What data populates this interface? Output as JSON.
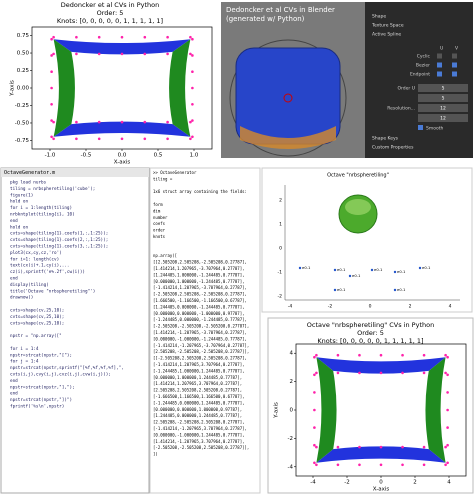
{
  "python_plot": {
    "title": "Dedoncker et al CVs in Python",
    "order": "Order: 5",
    "knots": "Knots: [0, 0, 0, 0, 0, 1, 1, 1, 1, 1]",
    "xlabel": "X-axis",
    "ylabel": "Y-axis",
    "xticks": [
      "-1.0",
      "-0.5",
      "0.0",
      "0.5",
      "1.0"
    ],
    "yticks": [
      "0.75",
      "0.50",
      "0.25",
      "0.00",
      "-0.25",
      "-0.50",
      "-0.75"
    ]
  },
  "blender": {
    "title_line1": "Dedoncker et al CVs in Blender",
    "title_line2": "(generated w/ Python)",
    "sections": [
      "Shape",
      "Texture Space",
      "Active Spline"
    ],
    "cyclic": "Cyclic",
    "bezier": "Bezier",
    "endpoint": "Endpoint",
    "u": "U",
    "v": "V",
    "order": "Order U",
    "order_u": "5",
    "order_v": "5",
    "resolution": "Resolution...",
    "res_u": "12",
    "res_v": "12",
    "smooth": "Smooth",
    "footer": [
      "Shape Keys",
      "Custom Properties"
    ]
  },
  "editor": {
    "tab": "OctaveGenerator.m",
    "lines": [
      "pkg load nurbs",
      "tiling = nrbspheretiling('cube');",
      "figure(1)",
      "hold on",
      "for i = 1:length(tiling)",
      "  nrbkntplot(tiling{i}, 10)",
      "end",
      "hold on",
      "cvts=shape(tiling{1}.coefs(1,:,1:25));",
      "cvts=shape(tiling{1}.coefs(2,:,1:25));",
      "cvts=shape(tiling{1}.coefs(3,:,1:25));",
      "plot3(cx,cy,cz,'ro')",
      "for i=1: length(cv)",
      "  text(cx(i)+.1,cy(i),...",
      "    cz(i),sprintf('e%.2f',cw(i)))",
      "end",
      "display(tiling)",
      "title('Octave \"nrbspheretiling\"')",
      "drawnow()",
      "",
      "cvts=shape(cv,25,10);",
      "cvts=shape(cv,25,10);",
      "cvts=shape(cv,25,10);",
      "",
      "npstr = \"np.array([\"",
      "",
      "for i = 1:4",
      "  npstr=strcat(npstr,\"[\");",
      "  for j = 1:4",
      "    npstr=strcat(npstr,sprintf(\"[%f,%f,%f,%f],\",",
      "      cvts(i,j),cvy(i,j),cvz(i,j),cvw(i,j)));",
      "  end",
      "  npstr=strcat(npstr,\"],\");",
      "end",
      "npstr=strcat(npstr,\"])\")",
      "fprintf('%s\\n',npstr)"
    ]
  },
  "console": {
    "lines": [
      ">> OctaveGenerator",
      "tiling =",
      "",
      "  1x6 struct array containing the fields:",
      "",
      "    form",
      "    dim",
      "    number",
      "    coefs",
      "    order",
      "    knots",
      "",
      "",
      "np.array([",
      "[[2.505208,2.505208,-2.505208,0.27787],",
      "[1.414214,1.207965,-3.707964,0.27787],",
      "[1.244485,1.000000,-1.244485,0.77787],",
      "[0.000000,1.000000,-1.244485,0.77787],",
      "[-1.414214,1.207965,-3.707964,0.27787],",
      "[-2.505208,2.505208,-2.505208,0.27787],",
      "[1.666500,-1.166500,-1.166500,0.67787],",
      "[1.244485,0.000000,-1.244485,0.77787],",
      "[0.000000,0.000000,-1.000000,0.97787],",
      "[-1.244485,0.000000,-1.244485,0.77787],",
      "[-2.505208,-2.505208,-2.505208,0.27787],",
      "[1.414214,-1.207965,-3.707964,0.27787],",
      "[0.000000,-1.000000,-1.244485,0.77787],",
      "[-1.414214,-1.207965,-3.707964,0.27787],",
      "[2.505208,-2.505208,-2.505208,0.27787]],",
      "[[-2.505208,2.505208,2.505208,0.27787],",
      "[-1.414214,1.207965,3.707964,0.27787],",
      "[-1.244485,1.000000,1.244485,0.77787],",
      "[0.000000,1.000000,1.244485,0.77787],",
      "[1.414214,1.207965,3.707964,0.27787],",
      "[2.505208,2.505208,2.505208,0.27787],",
      "[-1.666500,1.166500,1.166500,0.67787],",
      "[-1.244485,0.000000,1.244485,0.77787],",
      "[0.000000,0.000000,1.000000,0.97787],",
      "[1.244485,0.000000,1.244485,0.77787],",
      "[2.505208,-2.505208,2.505208,0.27787],",
      "[-1.414214,-1.207965,3.707964,0.27787],",
      "[0.000000,-1.000000,1.244485,0.77787],",
      "[1.414214,-1.207965,3.707964,0.27787],",
      "[-2.505208,-2.505208,2.505208,0.27787]],",
      "])"
    ]
  },
  "octave_plot": {
    "title": "Octave \"nrbspheretiling\"",
    "point_labels": [
      "e0.1",
      "e0.1",
      "e0.1",
      "e0.1",
      "e0.1",
      "e0.1",
      "e0.1",
      "e0.1"
    ],
    "xticks": [
      "-4",
      "-2",
      "0",
      "2",
      "4"
    ],
    "yticks": [
      "2",
      "1",
      "0",
      "-1",
      "-2"
    ]
  },
  "python_plot2": {
    "title": "Octave \"nrbspheretiling\" CVs in Python",
    "order": "Order: 5",
    "knots": "Knots: [0, 0, 0, 0, 0, 1, 1, 1, 1, 1]",
    "xlabel": "X-axis",
    "ylabel": "Y-axis",
    "xticks": [
      "-4",
      "-2",
      "0",
      "2",
      "4"
    ],
    "yticks": [
      "4",
      "2",
      "0",
      "-2",
      "-4"
    ]
  }
}
